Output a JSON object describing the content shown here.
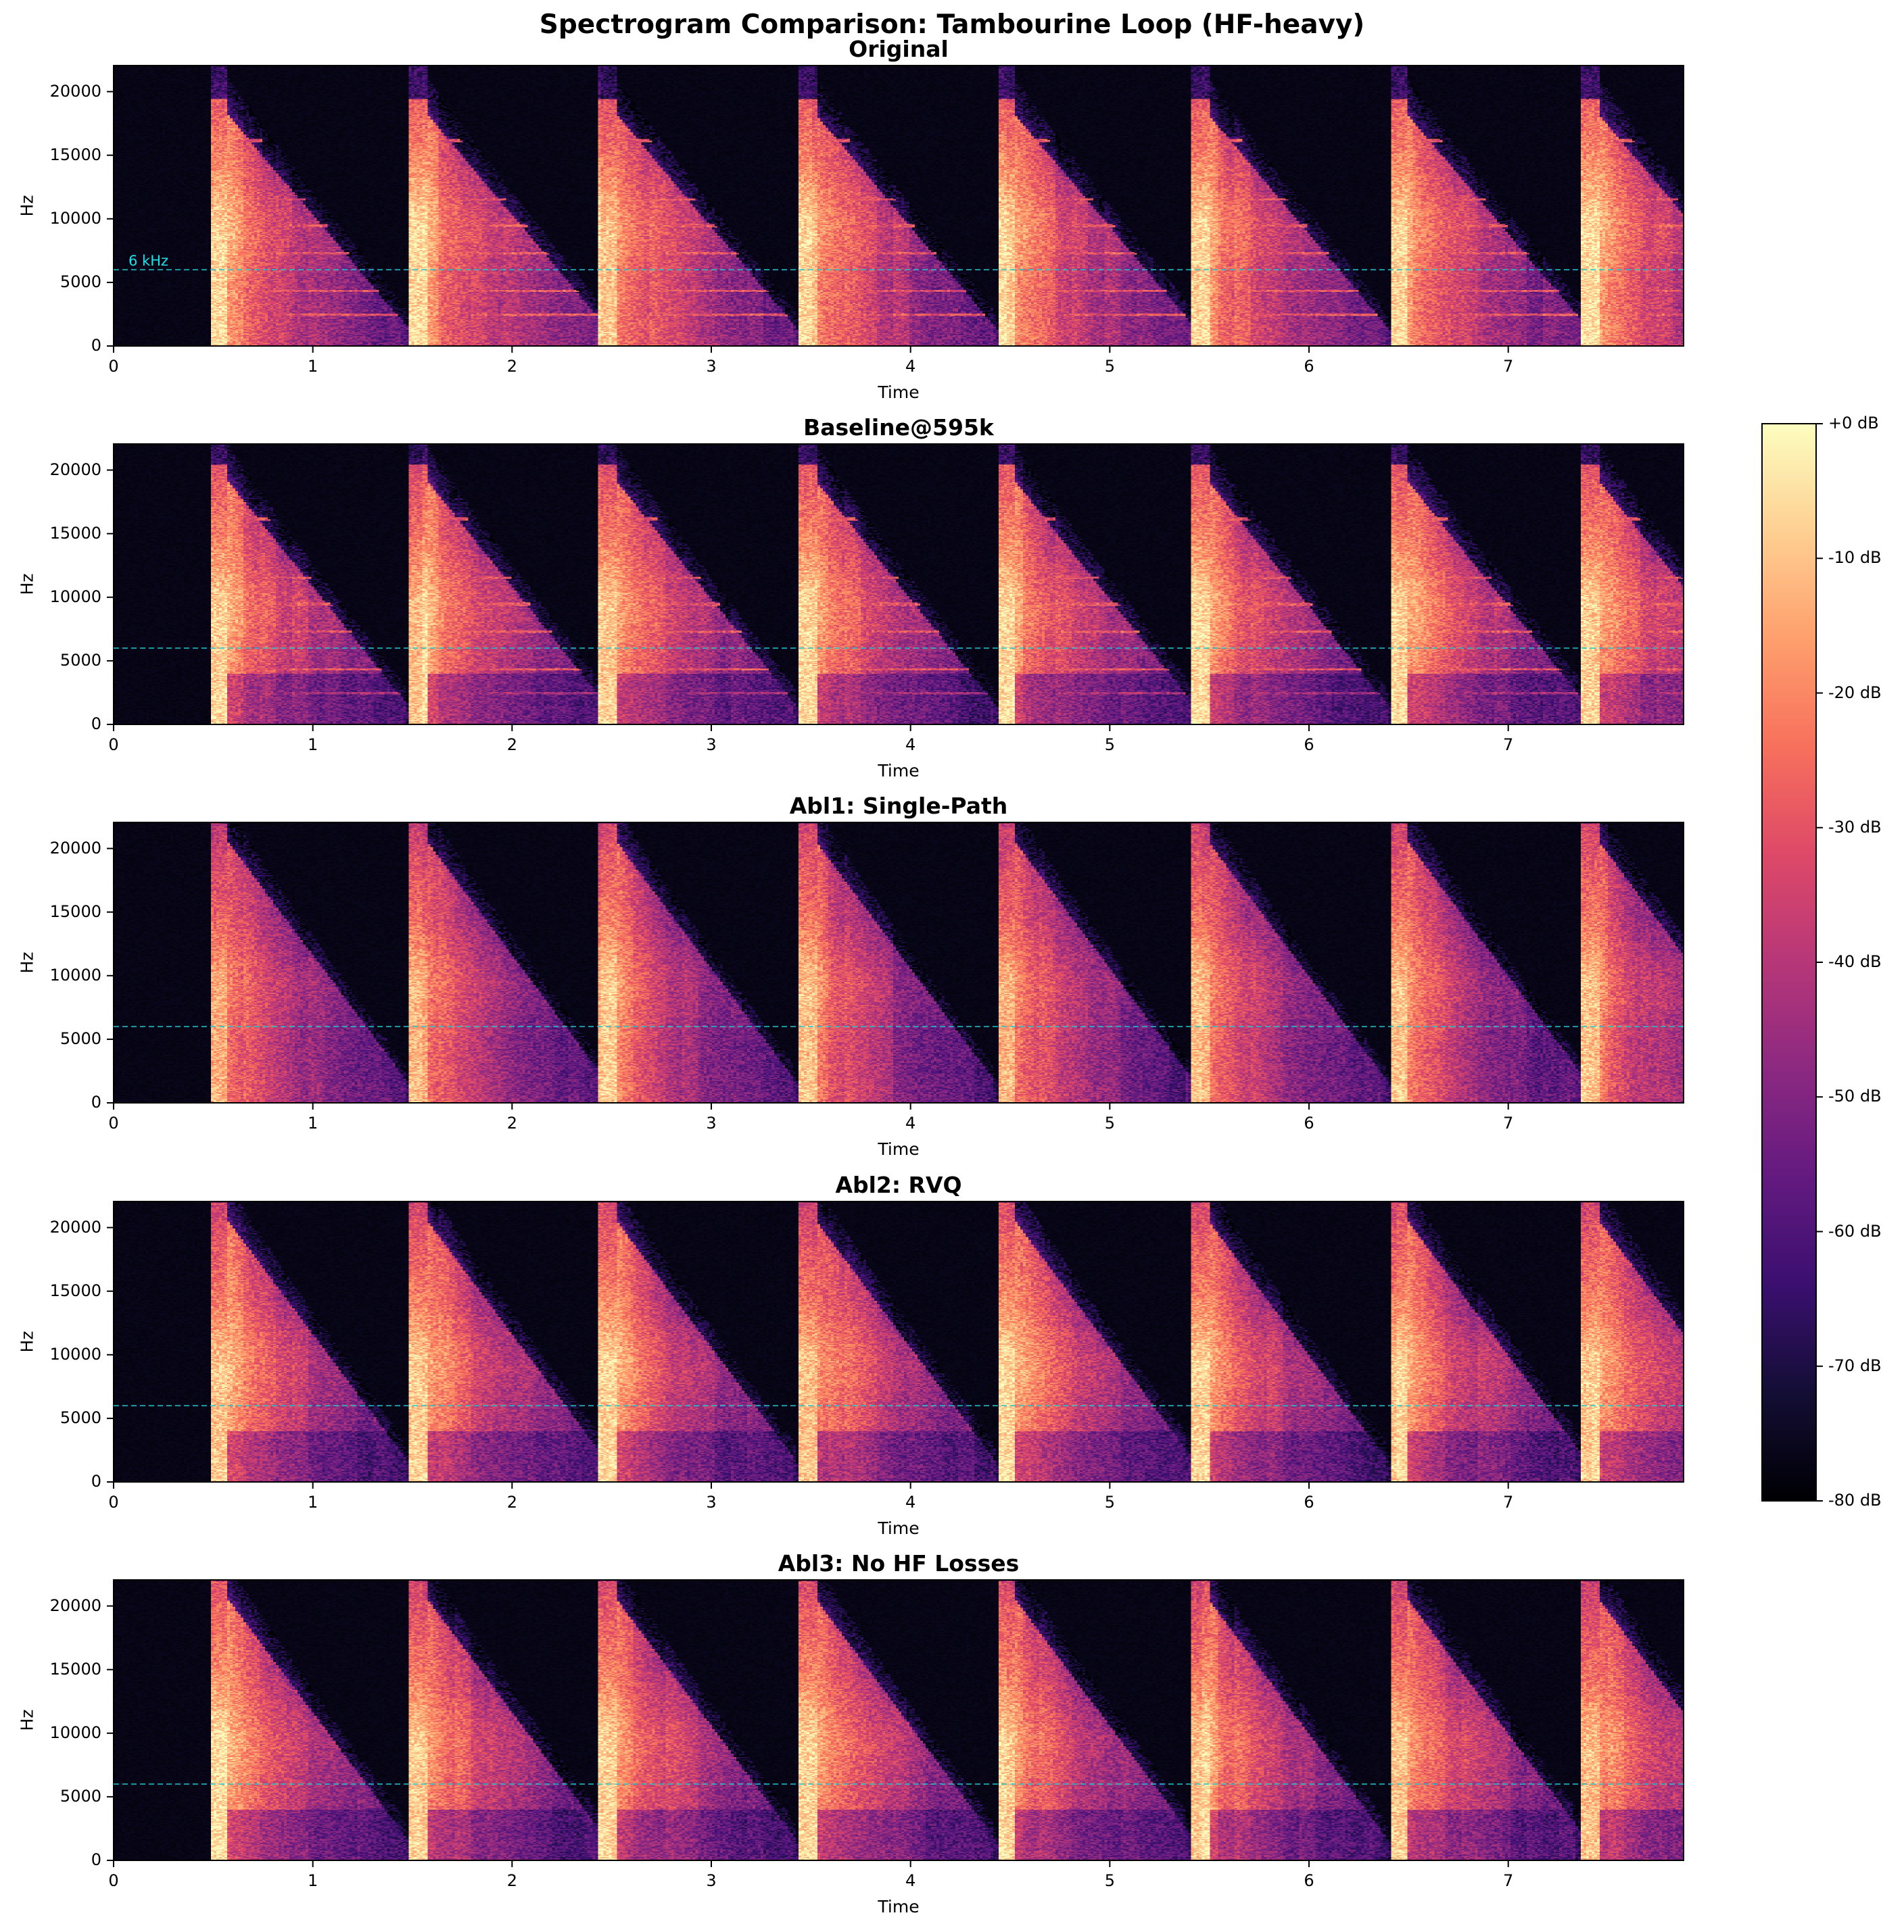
{
  "suptitle": "Spectrogram Comparison: Tambourine Loop (HF-heavy)",
  "chart_data": {
    "type": "heatmap",
    "colormap": "magma",
    "xlabel": "Time",
    "ylabel": "Hz",
    "xlim": [
      0,
      7.88
    ],
    "ylim": [
      0,
      22050
    ],
    "xticks": [
      0,
      1,
      2,
      3,
      4,
      5,
      6,
      7
    ],
    "xtick_labels": [
      "0",
      "1",
      "2",
      "3",
      "4",
      "5",
      "6",
      "7"
    ],
    "yticks": [
      0,
      5000,
      10000,
      15000,
      20000
    ],
    "ytick_labels": [
      "0",
      "5000",
      "10000",
      "15000",
      "20000"
    ],
    "onset_times_s": [
      0.5,
      1.5,
      2.45,
      3.45,
      4.45,
      5.42,
      6.42,
      7.38
    ],
    "reference_line": {
      "value_hz": 6000,
      "label": "6 kHz",
      "style": "dashed",
      "color": "#22c4cc"
    },
    "colorbar": {
      "range_db": [
        -80,
        0
      ],
      "ticks": [
        0,
        -10,
        -20,
        -30,
        -40,
        -50,
        -60,
        -70,
        -80
      ],
      "tick_labels": [
        "+0 dB",
        "-10 dB",
        "-20 dB",
        "-30 dB",
        "-40 dB",
        "-50 dB",
        "-60 dB",
        "-70 dB",
        "-80 dB"
      ]
    },
    "panels": [
      {
        "title": "Original",
        "show_ref_label": true,
        "variant": "original"
      },
      {
        "title": "Baseline@595k",
        "show_ref_label": false,
        "variant": "baseline"
      },
      {
        "title": "Abl1: Single-Path",
        "show_ref_label": false,
        "variant": "smeared"
      },
      {
        "title": "Abl2: RVQ",
        "show_ref_label": false,
        "variant": "rvq"
      },
      {
        "title": "Abl3: No HF Losses",
        "show_ref_label": false,
        "variant": "nohf"
      }
    ]
  }
}
